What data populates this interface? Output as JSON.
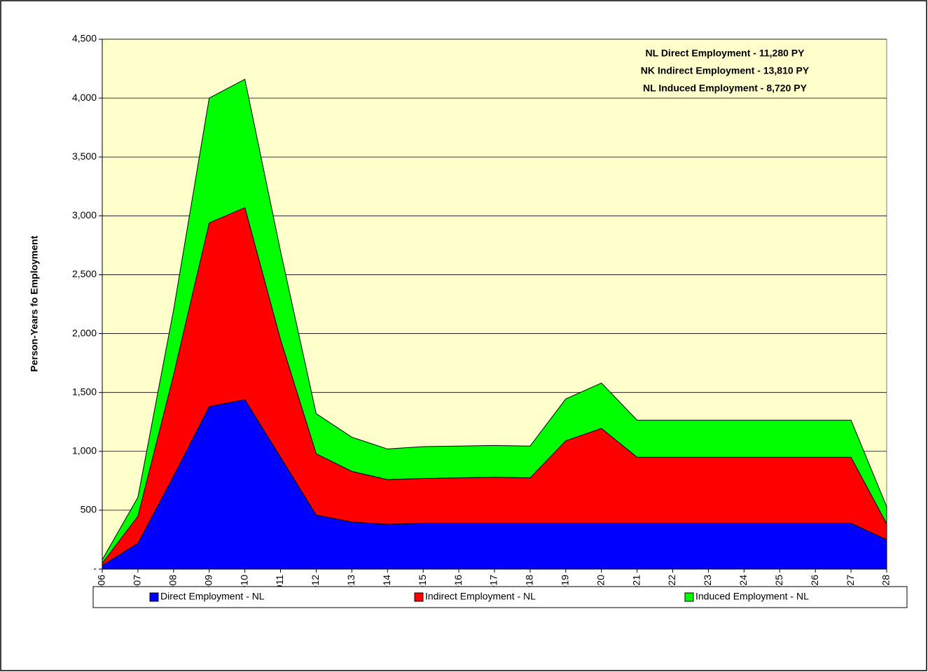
{
  "chart_data": {
    "type": "stacked_area",
    "y_label": "Person-Years fo Employment",
    "annotations": [
      "NL Direct Employment - 11,280 PY",
      "NK Indirect Employment - 13,810 PY",
      "NL Induced Employment - 8,720 PY"
    ],
    "categories": [
      "2006",
      "2007",
      "2008",
      "2009",
      "2010",
      "2011",
      "2012",
      "2013",
      "2014",
      "2015",
      "2016",
      "2017",
      "2018",
      "2019",
      "2020",
      "2021",
      "2022",
      "2023",
      "2024",
      "2025",
      "2026",
      "2027",
      "2028"
    ],
    "series": [
      {
        "name": "Direct Employment - NL",
        "color": "#0000ff",
        "values": [
          30,
          220,
          790,
          1380,
          1440,
          950,
          460,
          400,
          380,
          390,
          390,
          390,
          390,
          390,
          390,
          390,
          390,
          390,
          390,
          390,
          390,
          390,
          250
        ]
      },
      {
        "name": "Indirect Employment - NL",
        "color": "#ff0000",
        "values": [
          20,
          230,
          860,
          1560,
          1630,
          1000,
          520,
          430,
          380,
          380,
          385,
          390,
          385,
          700,
          805,
          560,
          560,
          560,
          560,
          560,
          560,
          560,
          135
        ]
      },
      {
        "name": "Induced Employment - NL",
        "color": "#00ff00",
        "values": [
          30,
          160,
          550,
          1060,
          1090,
          750,
          340,
          290,
          260,
          270,
          270,
          270,
          270,
          355,
          385,
          315,
          315,
          315,
          315,
          315,
          315,
          315,
          145
        ]
      }
    ],
    "ylim": [
      0,
      4500
    ],
    "yticks": [
      {
        "value": 0,
        "label": "-"
      },
      500,
      {
        "value": 1000,
        "label": "1,000"
      },
      {
        "value": 1500,
        "label": "1,500"
      },
      {
        "value": 2000,
        "label": "2,000"
      },
      {
        "value": 2500,
        "label": "2,500"
      },
      {
        "value": 3000,
        "label": "3,000"
      },
      {
        "value": 3500,
        "label": "3,500"
      },
      {
        "value": 4000,
        "label": "4,000"
      },
      {
        "value": 4500,
        "label": "4,500"
      }
    ],
    "grid": true,
    "plot_background": "#ffffcc",
    "legend": "bottom"
  }
}
